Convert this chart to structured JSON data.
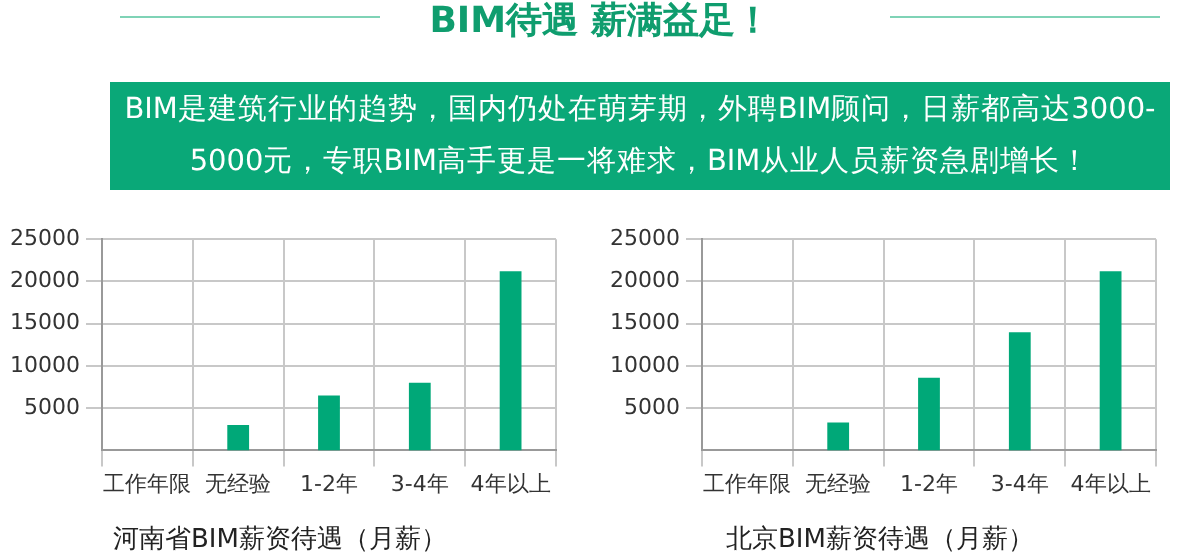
{
  "chart_data": [
    {
      "type": "bar",
      "title": "河南省BIM薪资待遇（月薪）",
      "annotations": [
        "BIM待遇 薪满益足！",
        "BIM是建筑行业的趋势，国内仍处在萌芽期，外聘BIM顾问，日薪都高达3000-5000元，专职BIM高手更是一将难求，BIM从业人员薪资急剧增长！"
      ],
      "categories": [
        "工作年限",
        "无经验",
        "1-2年",
        "3-4年",
        "4年以上"
      ],
      "values": [
        null,
        3000,
        6500,
        8000,
        21200
      ],
      "color": "#00a878",
      "ylim": [
        0,
        25000
      ],
      "yticks": [
        5000,
        10000,
        15000,
        20000,
        25000
      ],
      "grid": true
    },
    {
      "type": "bar",
      "title": "北京BIM薪资待遇（月薪）",
      "categories": [
        "工作年限",
        "无经验",
        "1-2年",
        "3-4年",
        "4年以上"
      ],
      "values": [
        null,
        3300,
        8600,
        14000,
        21200
      ],
      "color": "#00a878",
      "ylim": [
        0,
        25000
      ],
      "yticks": [
        5000,
        10000,
        15000,
        20000,
        25000
      ],
      "grid": true
    }
  ]
}
